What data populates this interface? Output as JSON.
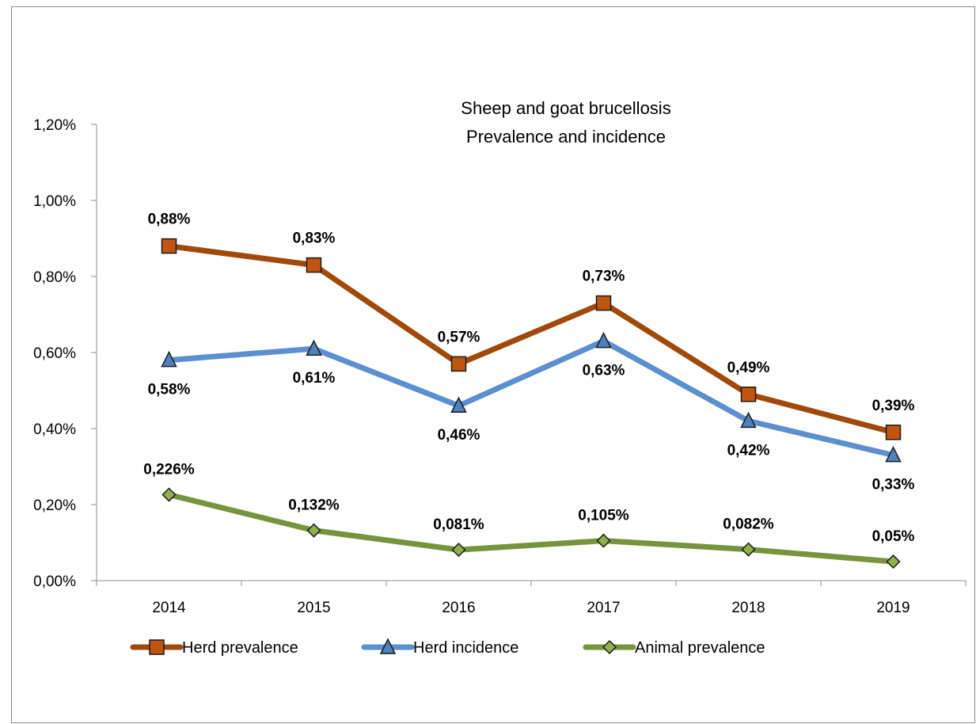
{
  "chart_data": {
    "type": "line",
    "title": "Sheep and goat brucellosis",
    "subtitle": "Prevalence and incidence",
    "categories": [
      "2014",
      "2015",
      "2016",
      "2017",
      "2018",
      "2019"
    ],
    "ylim": [
      0,
      1.2
    ],
    "yticks": [
      "0,00%",
      "0,20%",
      "0,40%",
      "0,60%",
      "0,80%",
      "1,00%",
      "1,20%"
    ],
    "ytick_values": [
      0,
      0.2,
      0.4,
      0.6,
      0.8,
      1.0,
      1.2
    ],
    "grid": false,
    "legend_position": "bottom",
    "series": [
      {
        "name": "Herd prevalence",
        "values": [
          0.88,
          0.83,
          0.57,
          0.73,
          0.49,
          0.39
        ],
        "labels": [
          "0,88%",
          "0,83%",
          "0,57%",
          "0,73%",
          "0,49%",
          "0,39%"
        ],
        "color": "#a0490a",
        "marker": "square",
        "marker_fill": "#c0550f"
      },
      {
        "name": "Herd incidence",
        "values": [
          0.58,
          0.61,
          0.46,
          0.63,
          0.42,
          0.33
        ],
        "labels": [
          "0,58%",
          "0,61%",
          "0,46%",
          "0,63%",
          "0,42%",
          "0,33%"
        ],
        "color": "#5b8fd0",
        "marker": "triangle",
        "marker_fill": "#4f81bd"
      },
      {
        "name": "Animal prevalence",
        "values": [
          0.226,
          0.132,
          0.081,
          0.105,
          0.082,
          0.05
        ],
        "labels": [
          "0,226%",
          "0,132%",
          "0,081%",
          "0,105%",
          "0,082%",
          "0,05%"
        ],
        "color": "#77933c",
        "marker": "diamond",
        "marker_fill": "#8fb04a"
      }
    ]
  }
}
